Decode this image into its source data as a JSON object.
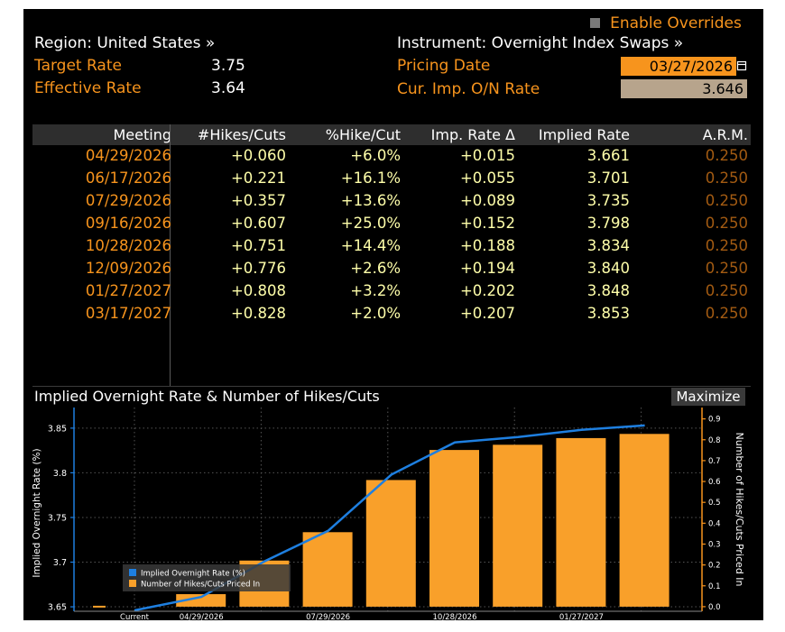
{
  "header": {
    "enable_overrides": "Enable Overrides",
    "region": "Region: United States »",
    "instrument": "Instrument: Overnight Index Swaps »",
    "target_rate_label": "Target Rate",
    "target_rate_value": "3.75",
    "effective_rate_label": "Effective Rate",
    "effective_rate_value": "3.64",
    "pricing_date_label": "Pricing Date",
    "pricing_date_value": "03/27/2026",
    "cur_imp_label": "Cur. Imp. O/N Rate",
    "cur_imp_value": "3.646"
  },
  "table": {
    "columns": [
      "Meeting",
      "#Hikes/Cuts",
      "%Hike/Cut",
      "Imp. Rate Δ",
      "Implied Rate",
      "A.R.M."
    ],
    "rows": [
      [
        "04/29/2026",
        "+0.060",
        "+6.0%",
        "+0.015",
        "3.661",
        "0.250"
      ],
      [
        "06/17/2026",
        "+0.221",
        "+16.1%",
        "+0.055",
        "3.701",
        "0.250"
      ],
      [
        "07/29/2026",
        "+0.357",
        "+13.6%",
        "+0.089",
        "3.735",
        "0.250"
      ],
      [
        "09/16/2026",
        "+0.607",
        "+25.0%",
        "+0.152",
        "3.798",
        "0.250"
      ],
      [
        "10/28/2026",
        "+0.751",
        "+14.4%",
        "+0.188",
        "3.834",
        "0.250"
      ],
      [
        "12/09/2026",
        "+0.776",
        "+2.6%",
        "+0.194",
        "3.840",
        "0.250"
      ],
      [
        "01/27/2027",
        "+0.808",
        "+3.2%",
        "+0.202",
        "3.848",
        "0.250"
      ],
      [
        "03/17/2027",
        "+0.828",
        "+2.0%",
        "+0.207",
        "3.853",
        "0.250"
      ]
    ]
  },
  "chart_title": "Implied Overnight Rate & Number of Hikes/Cuts",
  "maximize_label": "Maximize",
  "colors": {
    "accent": "#f7941d",
    "bar": "#f9a02a",
    "line": "#1e7fe0",
    "field_orange": "#f7941d",
    "field_tan": "#b7a48c"
  },
  "chart_data": {
    "type": "bar+line",
    "title": "Implied Overnight Rate & Number of Hikes/Cuts",
    "categories": [
      "Current",
      "04/29/2026",
      "06/17/2026",
      "07/29/2026",
      "09/16/2026",
      "10/28/2026",
      "12/09/2026",
      "01/27/2027",
      "03/17/2027"
    ],
    "x_tick_labels": [
      "Current",
      "04/29/2026",
      "07/29/2026",
      "10/28/2026",
      "01/27/2027"
    ],
    "series": [
      {
        "name": "Number of Hikes/Cuts Priced In",
        "axis": "right",
        "kind": "bar",
        "values": [
          0.0,
          0.06,
          0.221,
          0.357,
          0.607,
          0.751,
          0.776,
          0.808,
          0.828
        ]
      },
      {
        "name": "Implied Overnight Rate (%)",
        "axis": "left",
        "kind": "line",
        "values": [
          3.646,
          3.661,
          3.701,
          3.735,
          3.798,
          3.834,
          3.84,
          3.848,
          3.853
        ]
      }
    ],
    "ylabel": "Implied Overnight Rate (%)",
    "y2label": "Number of Hikes/Cuts Priced In",
    "ylim": [
      3.645,
      3.865
    ],
    "y_ticks": [
      3.65,
      3.7,
      3.75,
      3.8,
      3.85
    ],
    "y_tick_labels": [
      "3.65",
      "3.7",
      "3.75",
      "3.8",
      "3.85"
    ],
    "y2lim": [
      -0.022,
      0.92
    ],
    "y2_ticks": [
      0.0,
      0.1,
      0.2,
      0.3,
      0.4,
      0.5,
      0.6,
      0.7,
      0.8,
      0.9
    ],
    "y2_tick_labels": [
      "0.0",
      "0.1",
      "0.2",
      "0.3",
      "0.4",
      "0.5",
      "0.6",
      "0.7",
      "0.8",
      "0.9"
    ],
    "legend": [
      "Implied Overnight Rate (%)",
      "Number of Hikes/Cuts Priced In"
    ],
    "legend_position": "bottom-left"
  }
}
